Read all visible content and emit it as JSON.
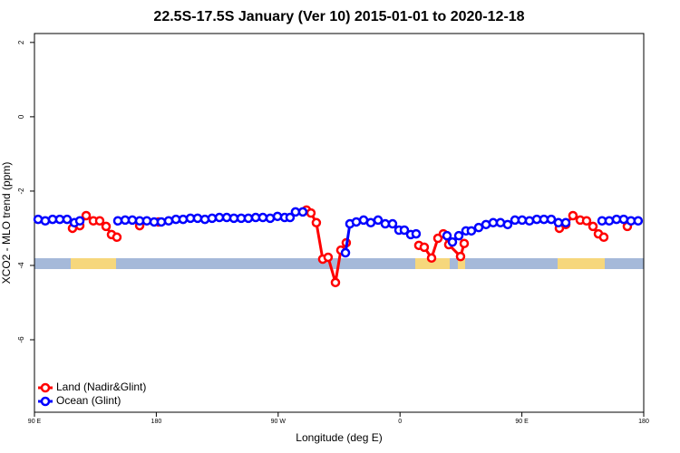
{
  "chart_data": {
    "type": "line",
    "title": "22.5S-17.5S January (Ver 10)   2015-01-01 to 2020-12-18",
    "x_label": "Longitude (deg E)",
    "y_label": "XCO2 - MLO trend (ppm)",
    "xlim": [
      90,
      540
    ],
    "ylim": [
      -7.95,
      2.24
    ],
    "xticks": [
      {
        "value": 90,
        "label": "90 E"
      },
      180,
      {
        "value": 270,
        "label": "90 W"
      },
      {
        "value": 360,
        "label": "0"
      },
      {
        "value": 450,
        "label": "90 E"
      },
      {
        "value": 540,
        "label": "180"
      }
    ],
    "yticks": [
      -6,
      -4,
      -2,
      0,
      2
    ],
    "legend": "bottom-left",
    "series": [
      {
        "name": "Land (Nadir&Glint)",
        "color": "#ff0000",
        "x": [
          118.1,
          123.5,
          128.2,
          133.5,
          138.2,
          142.9,
          146.9,
          150.9,
          null,
          167.7,
          null,
          181.7,
          null,
          290.9,
          294.2,
          298.2,
          302.9,
          306.9,
          312.3,
          316.3,
          320.3,
          null,
          373.9,
          377.9,
          383.3,
          388.0,
          392.0,
          396.0,
          404.7,
          407.4,
          null,
          477.7,
          482.4,
          487.7,
          493.1,
          497.8,
          502.5,
          506.5,
          510.5,
          null,
          527.9
        ],
        "values": [
          -3.0,
          -2.93,
          -2.66,
          -2.8,
          -2.8,
          -2.95,
          -3.17,
          -3.24,
          null,
          -2.93,
          null,
          -2.83,
          null,
          -2.51,
          -2.59,
          -2.85,
          -3.83,
          -3.78,
          -4.46,
          -3.59,
          -3.39,
          null,
          -3.46,
          -3.51,
          -3.8,
          -3.27,
          -3.15,
          -3.44,
          -3.76,
          -3.41,
          null,
          -3.0,
          -2.9,
          -2.66,
          -2.78,
          -2.8,
          -2.95,
          -3.15,
          -3.24,
          null,
          -2.95
        ]
      },
      {
        "name": "Ocean (Glint)",
        "color": "#0000ff",
        "x": [
          92.7,
          98.0,
          103.4,
          108.7,
          114.1,
          119.5,
          123.5,
          null,
          151.6,
          157.0,
          162.3,
          167.7,
          173.0,
          178.4,
          183.7,
          189.1,
          194.5,
          199.8,
          205.2,
          210.5,
          215.9,
          221.2,
          226.6,
          232.0,
          237.3,
          242.7,
          248.0,
          253.4,
          258.7,
          264.1,
          269.5,
          274.8,
          278.8,
          282.8,
          288.2,
          null,
          319.7,
          323.0,
          327.7,
          333.1,
          338.4,
          343.8,
          349.1,
          354.5,
          359.2,
          363.2,
          367.9,
          371.9,
          null,
          394.7,
          398.7,
          403.4,
          408.7,
          412.7,
          418.1,
          423.5,
          428.8,
          434.2,
          439.5,
          444.9,
          450.2,
          455.6,
          461.0,
          466.3,
          471.7,
          477.0,
          482.4,
          null,
          509.2,
          514.5,
          519.9,
          525.2,
          530.6,
          535.9
        ],
        "values": [
          -2.76,
          -2.8,
          -2.76,
          -2.76,
          -2.76,
          -2.85,
          -2.8,
          null,
          -2.8,
          -2.78,
          -2.78,
          -2.8,
          -2.8,
          -2.83,
          -2.83,
          -2.8,
          -2.76,
          -2.76,
          -2.73,
          -2.73,
          -2.76,
          -2.73,
          -2.71,
          -2.71,
          -2.73,
          -2.73,
          -2.73,
          -2.71,
          -2.71,
          -2.73,
          -2.68,
          -2.71,
          -2.71,
          -2.56,
          -2.56,
          null,
          -3.66,
          -2.88,
          -2.83,
          -2.78,
          -2.85,
          -2.78,
          -2.88,
          -2.88,
          -3.05,
          -3.05,
          -3.17,
          -3.15,
          null,
          -3.2,
          -3.37,
          -3.2,
          -3.07,
          -3.07,
          -2.98,
          -2.9,
          -2.85,
          -2.85,
          -2.9,
          -2.78,
          -2.78,
          -2.8,
          -2.76,
          -2.76,
          -2.76,
          -2.85,
          -2.85,
          null,
          -2.8,
          -2.8,
          -2.76,
          -2.76,
          -2.8,
          -2.8
        ]
      }
    ]
  }
}
